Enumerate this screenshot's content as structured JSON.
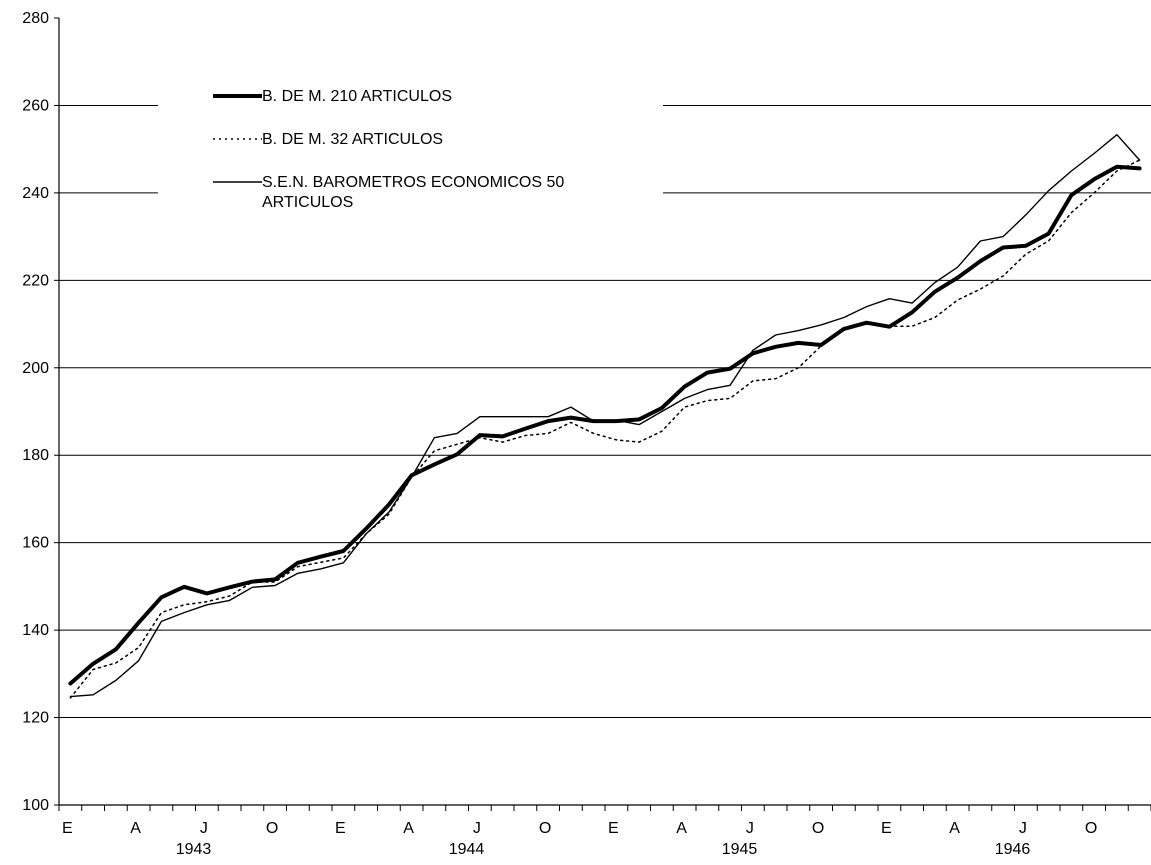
{
  "chart_data": {
    "type": "line",
    "title": "",
    "xlabel": "",
    "ylabel": "",
    "ylim": [
      100,
      280
    ],
    "yticks": [
      100,
      120,
      140,
      160,
      180,
      200,
      220,
      240,
      260,
      280
    ],
    "grid": "horizontal",
    "legend_position": "top-left",
    "month_labels": [
      "E",
      "A",
      "J",
      "O",
      "E",
      "A",
      "J",
      "O",
      "E",
      "A",
      "J",
      "O",
      "E",
      "A",
      "J",
      "O"
    ],
    "year_labels": [
      "1943",
      "1944",
      "1945",
      "1946"
    ],
    "x": [
      "1943-01",
      "1943-02",
      "1943-03",
      "1943-04",
      "1943-05",
      "1943-06",
      "1943-07",
      "1943-08",
      "1943-09",
      "1943-10",
      "1943-11",
      "1943-12",
      "1944-01",
      "1944-02",
      "1944-03",
      "1944-04",
      "1944-05",
      "1944-06",
      "1944-07",
      "1944-08",
      "1944-09",
      "1944-10",
      "1944-11",
      "1944-12",
      "1945-01",
      "1945-02",
      "1945-03",
      "1945-04",
      "1945-05",
      "1945-06",
      "1945-07",
      "1945-08",
      "1945-09",
      "1945-10",
      "1945-11",
      "1945-12",
      "1946-01",
      "1946-02",
      "1946-03",
      "1946-04",
      "1946-05",
      "1946-06",
      "1946-07",
      "1946-08",
      "1946-09",
      "1946-10",
      "1946-11",
      "1946-12"
    ],
    "series": [
      {
        "name": "B. DE M. 210 ARTICULOS",
        "style": "thick",
        "color": "#000000",
        "values": [
          127.8,
          132.3,
          135.6,
          141.7,
          147.5,
          149.9,
          148.4,
          149.8,
          151.1,
          151.6,
          155.4,
          156.8,
          158.1,
          163.2,
          168.7,
          175.4,
          177.9,
          180.2,
          184.6,
          184.3,
          186.1,
          187.8,
          188.6,
          187.8,
          187.8,
          188.2,
          190.8,
          195.7,
          198.9,
          199.8,
          203.3,
          204.8,
          205.7,
          205.2,
          208.9,
          210.3,
          209.4,
          212.7,
          217.4,
          220.6,
          224.4,
          227.5,
          227.9,
          230.7,
          239.5,
          243.1,
          246.0,
          245.6
        ]
      },
      {
        "name": "B. DE M. 32 ARTICULOS",
        "style": "dotted",
        "color": "#000000",
        "values": [
          124.5,
          131.0,
          132.5,
          136.0,
          144.0,
          145.8,
          146.5,
          147.8,
          151.0,
          151.0,
          154.5,
          155.5,
          156.5,
          162.0,
          166.5,
          175.0,
          181.0,
          182.5,
          184.0,
          183.0,
          184.5,
          185.0,
          187.5,
          185.0,
          183.5,
          183.0,
          185.5,
          191.0,
          192.5,
          193.0,
          197.0,
          197.5,
          200.0,
          205.0,
          209.0,
          210.0,
          209.5,
          209.5,
          211.5,
          215.5,
          218.0,
          221.0,
          226.0,
          229.0,
          235.5,
          240.0,
          245.0,
          247.5
        ]
      },
      {
        "name": "S.E.N. BAROMETROS ECONOMICOS 50 ARTICULOS",
        "style": "thin",
        "color": "#000000",
        "values": [
          124.8,
          125.2,
          128.5,
          133.0,
          142.0,
          144.0,
          145.8,
          146.8,
          149.8,
          150.2,
          153.0,
          154.0,
          155.4,
          162.0,
          167.0,
          175.0,
          184.0,
          185.0,
          188.8,
          188.8,
          188.8,
          188.8,
          191.0,
          187.8,
          188.0,
          187.0,
          190.0,
          193.0,
          195.0,
          196.0,
          204.0,
          207.5,
          208.5,
          209.8,
          211.5,
          214.0,
          215.8,
          214.8,
          219.5,
          223.0,
          229.0,
          230.0,
          235.0,
          240.5,
          245.0,
          249.0,
          253.3,
          247.5
        ]
      }
    ]
  }
}
